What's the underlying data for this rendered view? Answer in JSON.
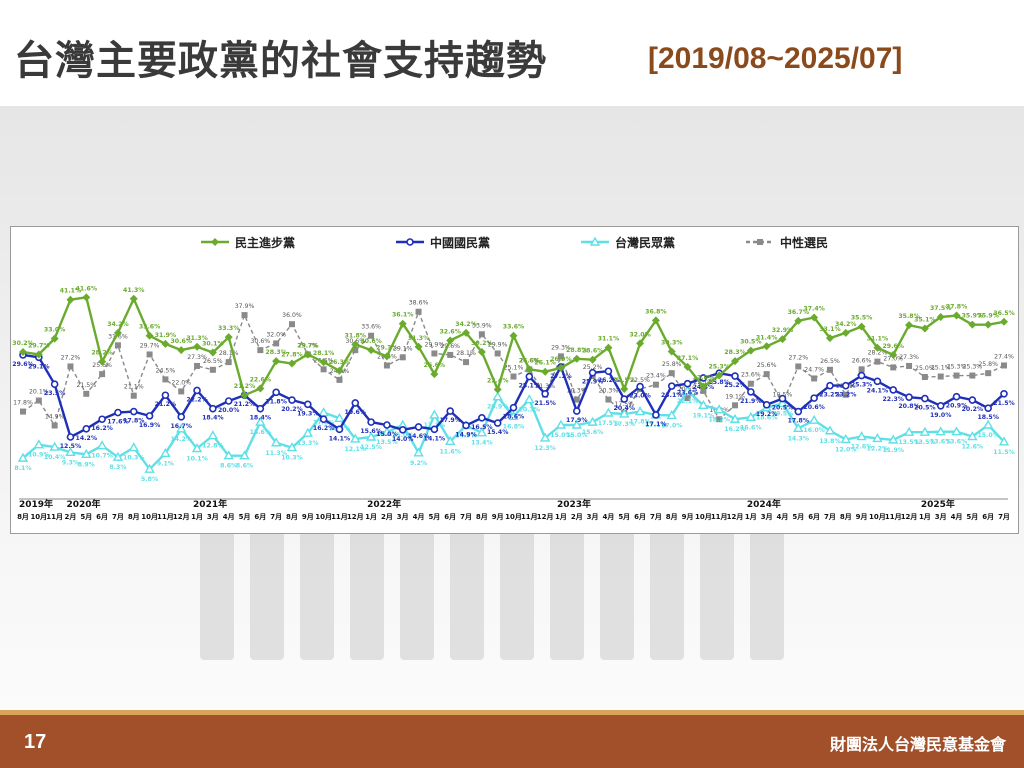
{
  "slide": {
    "title": "台灣主要政黨的社會支持趨勢",
    "range": "[2019/08~2025/07]",
    "page_number": "17",
    "organization": "財團法人台灣民意基金會"
  },
  "chart_data": {
    "type": "line",
    "x": [
      "2019-08",
      "2019-10",
      "2019-11",
      "2020-02",
      "2020-05",
      "2020-06",
      "2020-07",
      "2020-08",
      "2020-10",
      "2020-11",
      "2020-12",
      "2021-01",
      "2021-03",
      "2021-04",
      "2021-05",
      "2021-06",
      "2021-07",
      "2021-08",
      "2021-09",
      "2021-10",
      "2021-11",
      "2021-12",
      "2022-01",
      "2022-02",
      "2022-03",
      "2022-04",
      "2022-05",
      "2022-06",
      "2022-07",
      "2022-08",
      "2022-09",
      "2022-10",
      "2022-11",
      "2022-12",
      "2023-01",
      "2023-02",
      "2023-03",
      "2023-04",
      "2023-05",
      "2023-06",
      "2023-07",
      "2023-08",
      "2023-09",
      "2023-10",
      "2023-11",
      "2023-12",
      "2024-01",
      "2024-03",
      "2024-04",
      "2024-05",
      "2024-06",
      "2024-07",
      "2024-08",
      "2024-09",
      "2024-10",
      "2024-11",
      "2024-12",
      "2025-01",
      "2025-03",
      "2025-04",
      "2025-05",
      "2025-06",
      "2025-07"
    ],
    "x_tick_labels": [
      "8月",
      "10月",
      "11月",
      "2月",
      "5月",
      "6月",
      "7月",
      "8月",
      "10月",
      "11月",
      "12月",
      "1月",
      "3月",
      "4月",
      "5月",
      "6月",
      "7月",
      "8月",
      "9月",
      "10月",
      "11月",
      "12月",
      "1月",
      "2月",
      "3月",
      "4月",
      "5月",
      "6月",
      "7月",
      "8月",
      "9月",
      "10月",
      "11月",
      "12月",
      "1月",
      "2月",
      "3月",
      "4月",
      "5月",
      "6月",
      "7月",
      "8月",
      "9月",
      "10月",
      "11月",
      "12月",
      "1月",
      "3月",
      "4月",
      "5月",
      "6月",
      "7月",
      "8月",
      "9月",
      "10月",
      "11月",
      "12月",
      "1月",
      "3月",
      "4月",
      "5月",
      "6月",
      "7月"
    ],
    "year_labels": [
      {
        "label": "2019年",
        "index": 0
      },
      {
        "label": "2020年",
        "index": 3
      },
      {
        "label": "2021年",
        "index": 11
      },
      {
        "label": "2022年",
        "index": 22
      },
      {
        "label": "2023年",
        "index": 34
      },
      {
        "label": "2024年",
        "index": 46
      },
      {
        "label": "2025年",
        "index": 57
      }
    ],
    "ylim": [
      0,
      50
    ],
    "grid": false,
    "legend_position": "top",
    "series": [
      {
        "name": "民主進步黨",
        "color": "#6aab2e",
        "marker": "diamond",
        "dash": "none",
        "values": [
          30.2,
          29.7,
          33.0,
          41.1,
          41.6,
          28.2,
          34.2,
          41.3,
          33.6,
          31.9,
          30.6,
          31.3,
          30.1,
          33.3,
          21.2,
          22.6,
          28.3,
          27.8,
          29.7,
          28.1,
          26.3,
          31.8,
          30.6,
          29.3,
          36.1,
          31.3,
          25.6,
          32.6,
          34.2,
          30.2,
          22.4,
          33.6,
          26.6,
          26.1,
          26.9,
          28.8,
          28.6,
          31.1,
          22.5,
          32.0,
          36.8,
          30.3,
          27.1,
          23.0,
          25.3,
          28.3,
          30.5,
          31.4,
          32.9,
          36.7,
          37.4,
          33.1,
          34.2,
          35.5,
          31.1,
          29.6,
          35.8,
          35.1,
          37.5,
          37.8,
          35.9,
          35.9,
          36.5
        ],
        "labels": [
          "30.2%",
          "29.7%",
          "33.0%",
          "41.1%",
          "41.6%",
          "28.2%",
          "34.2%",
          "41.3%",
          "33.6%",
          "31.9%",
          "30.6%",
          "31.3%",
          "30.1%",
          "33.3%",
          "21.2%",
          "22.6%",
          "28.3%",
          "27.8%",
          "29.7%",
          "28.1%",
          "26.3%",
          "31.8%",
          "30.6%",
          "29.3%",
          "36.1%",
          "31.3%",
          "25.6%",
          "32.6%",
          "34.2%",
          "30.2%",
          "22.4%",
          "33.6%",
          "26.6%",
          "26.1%",
          "26.9%",
          "28.8%",
          "28.6%",
          "31.1%",
          "22.5%",
          "32.0%",
          "36.8%",
          "30.3%",
          "27.1%",
          "23.0%",
          "25.3%",
          "28.3%",
          "30.5%",
          "31.4%",
          "32.9%",
          "36.7%",
          "37.4%",
          "33.1%",
          "34.2%",
          "35.5%",
          "31.1%",
          "29.6%",
          "35.8%",
          "35.1%",
          "37.5%",
          "37.8%",
          "35.9%",
          "35.9%",
          "36.5%"
        ]
      },
      {
        "name": "中國國民黨",
        "color": "#1f2fb8",
        "marker": "circle",
        "dash": "none",
        "values": [
          29.6,
          29.1,
          23.5,
          12.5,
          14.2,
          16.2,
          17.6,
          17.8,
          16.9,
          21.2,
          16.7,
          22.2,
          18.4,
          20.0,
          21.2,
          18.4,
          21.8,
          20.2,
          19.3,
          16.2,
          14.1,
          19.6,
          15.6,
          15.0,
          14.0,
          14.6,
          14.1,
          17.9,
          14.9,
          16.5,
          15.4,
          18.6,
          25.1,
          21.5,
          27.1,
          17.9,
          25.9,
          26.2,
          20.4,
          23.0,
          17.1,
          23.1,
          23.6,
          24.8,
          25.8,
          25.2,
          21.9,
          19.2,
          20.5,
          17.8,
          20.6,
          23.2,
          23.2,
          25.3,
          24.1,
          22.3,
          20.8,
          20.5,
          19.0,
          20.9,
          20.2,
          18.5,
          21.5
        ],
        "labels": [
          "29.6%",
          "29.1%",
          "23.5%",
          "12.5%",
          "14.2%",
          "16.2%",
          "17.6%",
          "17.8%",
          "16.9%",
          "21.2%",
          "16.7%",
          "22.2%",
          "18.4%",
          "20.0%",
          "21.2%",
          "18.4%",
          "21.8%",
          "20.2%",
          "19.3%",
          "16.2%",
          "14.1%",
          "19.6%",
          "15.6%",
          "15.0%",
          "14.0%",
          "14.6%",
          "14.1%",
          "17.9%",
          "14.9%",
          "16.5%",
          "15.4%",
          "18.6%",
          "25.1%",
          "21.5%",
          "27.1%",
          "17.9%",
          "25.9%",
          "26.2%",
          "20.4%",
          "23.0%",
          "17.1%",
          "23.1%",
          "23.6%",
          "24.8%",
          "25.8%",
          "25.2%",
          "21.9%",
          "19.2%",
          "20.5%",
          "17.8%",
          "20.6%",
          "23.2%",
          "23.2%",
          "25.3%",
          "24.1%",
          "22.3%",
          "20.8%",
          "20.5%",
          "19.0%",
          "20.9%",
          "20.2%",
          "18.5%",
          "21.5%"
        ]
      },
      {
        "name": "台灣民眾黨",
        "color": "#5ee0e6",
        "marker": "triangle",
        "dash": "none",
        "values": [
          8.1,
          10.9,
          10.4,
          9.3,
          8.9,
          10.7,
          8.3,
          10.3,
          5.8,
          9.1,
          14.2,
          10.1,
          12.8,
          8.6,
          8.6,
          15.6,
          11.3,
          10.3,
          13.3,
          17.6,
          16.4,
          12.1,
          12.5,
          13.5,
          15.0,
          9.2,
          17.1,
          11.6,
          14.9,
          13.4,
          20.9,
          16.8,
          20.3,
          12.3,
          15.0,
          15.0,
          15.6,
          17.5,
          17.3,
          17.8,
          17.1,
          17.0,
          22.1,
          19.1,
          18.2,
          16.2,
          16.6,
          18.6,
          19.5,
          14.3,
          16.0,
          13.8,
          12.0,
          12.6,
          12.2,
          11.9,
          13.5,
          13.5,
          13.6,
          13.6,
          12.6,
          15.0,
          11.5
        ],
        "labels": [
          "8.1%",
          "10.9%",
          "10.4%",
          "9.3%",
          "8.9%",
          "10.7%",
          "8.3%",
          "10.3%",
          "5.8%",
          "9.1%",
          "14.2%",
          "10.1%",
          "12.8%",
          "8.6%",
          "8.6%",
          "15.6%",
          "11.3%",
          "10.3%",
          "13.3%",
          "17.6%",
          "16.4%",
          "12.1%",
          "12.5%",
          "13.5%",
          "15.0%",
          "9.2%",
          "17.1%",
          "11.6%",
          "14.9%",
          "13.4%",
          "20.9%",
          "16.8%",
          "20.3%",
          "12.3%",
          "15.0%",
          "15.0%",
          "15.6%",
          "17.5%",
          "17.3%",
          "17.8%",
          "17.1%",
          "17.0%",
          "22.1%",
          "19.1%",
          "18.2%",
          "16.2%",
          "16.6%",
          "18.6%",
          "19.5%",
          "14.3%",
          "16.0%",
          "13.8%",
          "12.0%",
          "12.6%",
          "12.2%",
          "11.9%",
          "13.5%",
          "13.5%",
          "13.6%",
          "13.6%",
          "12.6%",
          "15.0%",
          "11.5%"
        ]
      },
      {
        "name": "中性選民",
        "color": "#8a8a8a",
        "marker": "square",
        "dash": "4,3",
        "values": [
          17.8,
          20.1,
          14.9,
          27.2,
          21.5,
          25.6,
          31.6,
          21.1,
          29.7,
          24.5,
          22.0,
          27.3,
          26.5,
          28.1,
          37.9,
          30.6,
          32.0,
          36.0,
          29.7,
          26.6,
          24.4,
          30.6,
          33.6,
          27.4,
          29.1,
          38.6,
          29.9,
          29.6,
          28.1,
          33.9,
          29.9,
          25.1,
          26.6,
          21.3,
          29.3,
          20.3,
          25.2,
          20.3,
          17.5,
          22.5,
          23.4,
          25.8,
          20.6,
          22.1,
          16.2,
          19.1,
          23.6,
          25.6,
          19.5,
          27.2,
          24.7,
          26.5,
          21.3,
          26.6,
          28.2,
          27.0,
          27.3,
          25.0,
          25.1,
          25.3,
          25.3,
          25.8,
          27.4
        ],
        "labels": [
          "17.8%",
          "20.1%",
          "14.9%",
          "27.2%",
          "21.5%",
          "25.6%",
          "31.6%",
          "21.1%",
          "29.7%",
          "24.5%",
          "22.0%",
          "27.3%",
          "26.5%",
          "28.1%",
          "37.9%",
          "30.6%",
          "32.0%",
          "36.0%",
          "29.7%",
          "26.6%",
          "24.4%",
          "30.6%",
          "33.6%",
          "27.4%",
          "29.1%",
          "38.6%",
          "29.9%",
          "29.6%",
          "28.1%",
          "33.9%",
          "29.9%",
          "25.1%",
          "26.6%",
          "21.3%",
          "29.3%",
          "20.3%",
          "25.2%",
          "20.3%",
          "17.5%",
          "22.5%",
          "23.4%",
          "25.8%",
          "20.6%",
          "22.1%",
          "16.2%",
          "19.1%",
          "23.6%",
          "25.6%",
          "19.5%",
          "27.2%",
          "24.7%",
          "26.5%",
          "21.3%",
          "26.6%",
          "28.2%",
          "27.0%",
          "27.3%",
          "25.0%",
          "25.1%",
          "25.3%",
          "25.3%",
          "25.8%",
          "27.4%"
        ]
      }
    ]
  }
}
